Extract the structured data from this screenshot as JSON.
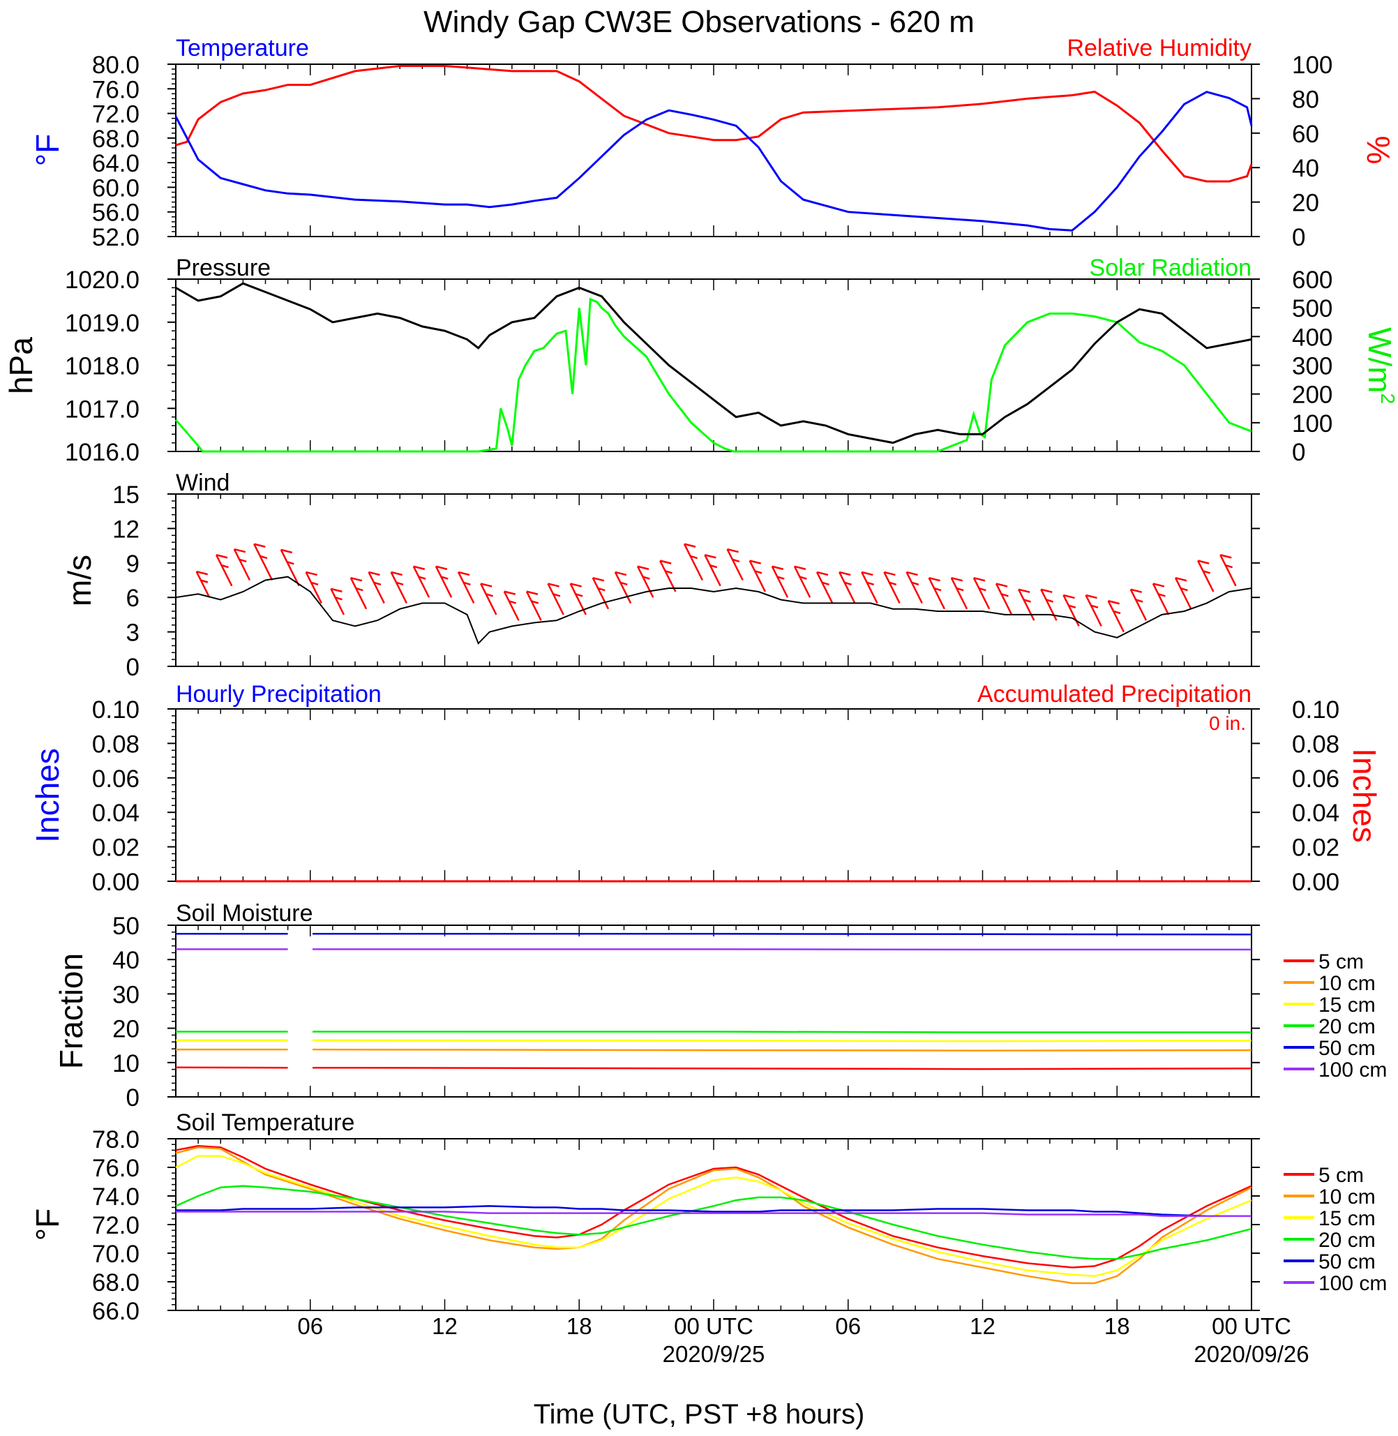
{
  "title": "Windy Gap CW3E Observations - 620 m",
  "x_axis": {
    "label": "Time (UTC, PST +8 hours)",
    "tick_labels": [
      "06",
      "12",
      "18",
      "00 UTC",
      "06",
      "12",
      "18",
      "00 UTC"
    ],
    "date_labels": [
      "2020/9/25",
      "2020/09/26"
    ]
  },
  "colors": {
    "temperature": "#0000ff",
    "humidity": "#ff0000",
    "pressure": "#000000",
    "solar": "#00ff00",
    "wind": "#000000",
    "barbs": "#ff0000",
    "hourly_precip": "#0000ff",
    "accum_precip": "#ff0000"
  },
  "soil_legend": [
    {
      "label": "5 cm",
      "color": "#ff0000"
    },
    {
      "label": "10 cm",
      "color": "#ff9900"
    },
    {
      "label": "15 cm",
      "color": "#ffff00"
    },
    {
      "label": "20 cm",
      "color": "#00ee00"
    },
    {
      "label": "50 cm",
      "color": "#0000dd"
    },
    {
      "label": "100 cm",
      "color": "#9933ff"
    }
  ],
  "chart_data": [
    {
      "type": "line",
      "panel": "temperature_humidity",
      "title_left": "Temperature",
      "title_right": "Relative Humidity",
      "ylabel_left": "°F",
      "ylabel_right": "%",
      "ylim_left": [
        52,
        80
      ],
      "ylim_right": [
        0,
        100
      ],
      "yticks_left": [
        "80.0",
        "76.0",
        "72.0",
        "68.0",
        "64.0",
        "60.0",
        "56.0",
        "52.0"
      ],
      "yticks_right": [
        "100",
        "80",
        "60",
        "40",
        "20",
        "0"
      ],
      "x_hours": [
        0,
        0.5,
        1,
        2,
        3,
        4,
        5,
        6,
        8,
        10,
        12,
        13,
        14,
        15,
        16,
        17,
        18,
        19,
        20,
        21,
        22,
        23,
        24,
        25,
        26,
        27,
        28,
        30,
        32,
        34,
        36,
        38,
        39,
        40,
        41,
        42,
        43,
        44,
        45,
        46,
        47,
        47.8,
        48
      ],
      "series": [
        {
          "name": "Temperature",
          "axis": "left",
          "values": [
            71.5,
            68,
            64.5,
            61.5,
            60.5,
            59.5,
            59,
            58.8,
            58,
            57.7,
            57.2,
            57.2,
            56.8,
            57.2,
            57.8,
            58.3,
            61.5,
            65,
            68.5,
            71,
            72.5,
            71.8,
            71,
            70,
            66.5,
            61,
            58,
            56,
            55.5,
            55,
            54.5,
            53.8,
            53.2,
            53,
            56,
            60,
            65,
            69,
            73.5,
            75.5,
            74.5,
            73,
            70
          ]
        },
        {
          "name": "Relative Humidity",
          "axis": "right",
          "values": [
            53,
            55,
            68,
            78,
            83,
            85,
            88,
            88,
            96,
            99,
            99,
            98,
            97,
            96,
            96,
            96,
            90,
            80,
            70,
            65,
            60,
            58,
            56,
            56,
            58,
            68,
            72,
            73,
            74,
            75,
            77,
            80,
            81,
            82,
            84,
            76,
            66,
            50,
            35,
            32,
            32,
            35,
            42
          ]
        }
      ]
    },
    {
      "type": "line",
      "panel": "pressure_solar",
      "title_left": "Pressure",
      "title_right": "Solar Radiation",
      "ylabel_left": "hPa",
      "ylabel_right": "W/m2",
      "ylim_left": [
        1016,
        1020
      ],
      "ylim_right": [
        0,
        600
      ],
      "yticks_left": [
        "1020.0",
        "1019.0",
        "1018.0",
        "1017.0",
        "1016.0"
      ],
      "yticks_right": [
        "600",
        "500",
        "400",
        "300",
        "200",
        "100",
        "0"
      ],
      "series": [
        {
          "name": "Pressure",
          "axis": "left",
          "x_hours": [
            0,
            1,
            2,
            3,
            4,
            5,
            6,
            7,
            8,
            9,
            10,
            11,
            12,
            13,
            13.5,
            14,
            15,
            16,
            17,
            18,
            19,
            20,
            21,
            22,
            23,
            24,
            25,
            26,
            27,
            28,
            29,
            30,
            31,
            32,
            33,
            34,
            35,
            36,
            37,
            38,
            39,
            40,
            41,
            42,
            43,
            44,
            45,
            46,
            47,
            48
          ],
          "values": [
            1019.8,
            1019.5,
            1019.6,
            1019.9,
            1019.7,
            1019.5,
            1019.3,
            1019.0,
            1019.1,
            1019.2,
            1019.1,
            1018.9,
            1018.8,
            1018.6,
            1018.4,
            1018.7,
            1019.0,
            1019.1,
            1019.6,
            1019.8,
            1019.6,
            1019.0,
            1018.5,
            1018.0,
            1017.6,
            1017.2,
            1016.8,
            1016.9,
            1016.6,
            1016.7,
            1016.6,
            1016.4,
            1016.3,
            1016.2,
            1016.4,
            1016.5,
            1016.4,
            1016.4,
            1016.8,
            1017.1,
            1017.5,
            1017.9,
            1018.5,
            1019.0,
            1019.3,
            1019.2,
            1018.8,
            1018.4,
            1018.5,
            1018.6
          ]
        },
        {
          "name": "Solar Radiation",
          "axis": "right",
          "x_hours": [
            0,
            1,
            1.2,
            12,
            13.5,
            14.3,
            14.5,
            14.8,
            15,
            15.3,
            15.6,
            16,
            16.4,
            17,
            17.4,
            17.7,
            18,
            18.3,
            18.5,
            18.8,
            19,
            19.3,
            19.6,
            20,
            21,
            22,
            23,
            24,
            24.5,
            24.9,
            25.1,
            34,
            35.3,
            35.6,
            35.9,
            36.1,
            36.4,
            37,
            38,
            39,
            40,
            41,
            42,
            43,
            44,
            45,
            46,
            47,
            48
          ],
          "values": [
            110,
            20,
            0,
            0,
            0,
            10,
            150,
            80,
            20,
            250,
            300,
            350,
            360,
            410,
            420,
            200,
            500,
            300,
            530,
            520,
            500,
            480,
            440,
            400,
            330,
            200,
            100,
            30,
            10,
            0,
            0,
            0,
            40,
            130,
            60,
            50,
            250,
            370,
            450,
            480,
            480,
            470,
            450,
            380,
            350,
            300,
            200,
            100,
            70
          ]
        }
      ]
    },
    {
      "type": "line",
      "panel": "wind",
      "title_left": "Wind",
      "ylabel_left": "m/s",
      "ylim_left": [
        0,
        15
      ],
      "yticks_left": [
        "15",
        "12",
        "9",
        "6",
        "3",
        "0"
      ],
      "x_hours": [
        0,
        1,
        2,
        3,
        4,
        5,
        6,
        7,
        8,
        9,
        10,
        11,
        12,
        13,
        13.5,
        14,
        15,
        16,
        17,
        18,
        19,
        20,
        21,
        22,
        23,
        24,
        25,
        26,
        27,
        28,
        29,
        30,
        31,
        32,
        33,
        34,
        35,
        36,
        37,
        38,
        39,
        40,
        41,
        42,
        43,
        44,
        45,
        46,
        47,
        48
      ],
      "series": [
        {
          "name": "Wind speed",
          "axis": "left",
          "values": [
            6,
            6.3,
            5.8,
            6.5,
            7.5,
            7.8,
            6.5,
            4,
            3.5,
            4,
            5,
            5.5,
            5.5,
            4.5,
            2,
            3,
            3.5,
            3.8,
            4,
            4.8,
            5.5,
            6,
            6.5,
            6.8,
            6.8,
            6.5,
            6.8,
            6.5,
            5.8,
            5.5,
            5.5,
            5.5,
            5.5,
            5,
            5,
            4.8,
            4.8,
            4.8,
            4.5,
            4.5,
            4.5,
            4.2,
            3,
            2.5,
            3.5,
            4.5,
            4.8,
            5.5,
            6.5,
            6.8
          ]
        }
      ],
      "barbs": {
        "x_hours": [
          1.5,
          2.5,
          3.3,
          4.3,
          5.5,
          6.5,
          7.5,
          8.5,
          9.3,
          10.3,
          11.3,
          12.3,
          13.3,
          14.3,
          15.3,
          16.3,
          17.3,
          18.3,
          19.3,
          20.3,
          21.3,
          22.3,
          23.5,
          24.3,
          25.3,
          26.3,
          27.3,
          28.3,
          29.3,
          30.3,
          31.3,
          32.3,
          33.3,
          34.3,
          35.3,
          36.3,
          37.3,
          38.3,
          39.3,
          40.3,
          41.3,
          42.3,
          43.3,
          44.3,
          45.3,
          46.3,
          47.3
        ],
        "speed": [
          6,
          7,
          7.5,
          7.5,
          7,
          5.5,
          4.5,
          5,
          5.5,
          5.5,
          6,
          6,
          5.5,
          4.5,
          4,
          4,
          4.5,
          4.5,
          5,
          5.5,
          6,
          6.5,
          7.5,
          7,
          7.5,
          6.5,
          6,
          6,
          5.5,
          5.5,
          5.5,
          5.5,
          5.5,
          5,
          5,
          5,
          4.5,
          4,
          4,
          3.5,
          3.5,
          3,
          4,
          4.5,
          5,
          6.5,
          7
        ],
        "length_ms": [
          2.5,
          3,
          3,
          3.5,
          3.5,
          3,
          2.5,
          3,
          3,
          3,
          3,
          3,
          3,
          3,
          2.8,
          2.8,
          3,
          3,
          3,
          3,
          3,
          3,
          3.5,
          3,
          3,
          3,
          3,
          3,
          3,
          3,
          3,
          3,
          3,
          3,
          3,
          3,
          3,
          3,
          3,
          3,
          3,
          3,
          3,
          3,
          3,
          3,
          3
        ]
      }
    },
    {
      "type": "line",
      "panel": "precipitation",
      "title_left": "Hourly Precipitation",
      "title_right": "Accumulated Precipitation",
      "annotation": "0 in.",
      "ylabel_left": "Inches",
      "ylabel_right": "Inches",
      "ylim_left": [
        0,
        0.1
      ],
      "ylim_right": [
        0,
        0.1
      ],
      "yticks_left": [
        "0.10",
        "0.08",
        "0.06",
        "0.04",
        "0.02",
        "0.00"
      ],
      "yticks_right": [
        "0.10",
        "0.08",
        "0.06",
        "0.04",
        "0.02",
        "0.00"
      ],
      "x_hours": [
        0,
        48
      ],
      "series": [
        {
          "name": "Hourly Precipitation",
          "axis": "left",
          "values": [
            0,
            0
          ]
        },
        {
          "name": "Accumulated Precipitation",
          "axis": "right",
          "values": [
            0,
            0
          ]
        }
      ]
    },
    {
      "type": "line",
      "panel": "soil_moisture",
      "title_left": "Soil Moisture",
      "ylabel_left": "Fraction",
      "ylim_left": [
        0,
        50
      ],
      "yticks_left": [
        "50",
        "40",
        "30",
        "20",
        "10",
        "0"
      ],
      "x_hours": [
        0,
        5,
        6.1,
        24,
        36,
        48
      ],
      "gap_hours": [
        5.0,
        6.0
      ],
      "series": [
        {
          "name": "5 cm",
          "values": [
            8.6,
            8.5,
            8.5,
            8.3,
            8.1,
            8.3
          ]
        },
        {
          "name": "10 cm",
          "values": [
            13.8,
            13.8,
            13.8,
            13.6,
            13.5,
            13.6
          ]
        },
        {
          "name": "15 cm",
          "values": [
            16.5,
            16.5,
            16.5,
            16.4,
            16.2,
            16.4
          ]
        },
        {
          "name": "20 cm",
          "values": [
            19.0,
            19.0,
            19.0,
            19.0,
            18.8,
            18.8
          ]
        },
        {
          "name": "50 cm",
          "values": [
            47.5,
            47.5,
            47.5,
            47.5,
            47.4,
            47.3
          ]
        },
        {
          "name": "100 cm",
          "values": [
            43.0,
            43.0,
            43.0,
            43.0,
            42.9,
            42.9
          ]
        }
      ]
    },
    {
      "type": "line",
      "panel": "soil_temperature",
      "title_left": "Soil Temperature",
      "ylabel_left": "°F",
      "ylim_left": [
        66,
        78
      ],
      "yticks_left": [
        "78.0",
        "76.0",
        "74.0",
        "72.0",
        "70.0",
        "68.0",
        "66.0"
      ],
      "x_hours": [
        0,
        1,
        2,
        3,
        4,
        6,
        8,
        10,
        12,
        14,
        16,
        17,
        18,
        19,
        20,
        22,
        24,
        25,
        26,
        27,
        28,
        30,
        32,
        34,
        36,
        38,
        40,
        41,
        42,
        43,
        44,
        46,
        48
      ],
      "series": [
        {
          "name": "5 cm",
          "values": [
            77.2,
            77.5,
            77.4,
            76.7,
            75.9,
            74.8,
            73.8,
            73.0,
            72.3,
            71.7,
            71.2,
            71.1,
            71.3,
            72.0,
            73.0,
            74.8,
            75.9,
            76.0,
            75.5,
            74.7,
            73.9,
            72.4,
            71.2,
            70.4,
            69.8,
            69.3,
            69.0,
            69.1,
            69.6,
            70.5,
            71.6,
            73.3,
            74.7
          ]
        },
        {
          "name": "10 cm",
          "values": [
            77.0,
            77.4,
            77.3,
            76.4,
            75.5,
            74.5,
            73.4,
            72.4,
            71.6,
            70.9,
            70.4,
            70.3,
            70.4,
            71.0,
            72.3,
            74.5,
            75.8,
            75.9,
            75.3,
            74.4,
            73.3,
            71.8,
            70.6,
            69.6,
            69.0,
            68.4,
            67.9,
            67.9,
            68.4,
            69.6,
            71.1,
            73.0,
            74.6
          ]
        },
        {
          "name": "15 cm",
          "values": [
            76.0,
            76.8,
            76.8,
            76.3,
            75.6,
            74.6,
            73.6,
            72.6,
            71.9,
            71.2,
            70.6,
            70.4,
            70.4,
            70.9,
            71.8,
            73.8,
            75.1,
            75.3,
            75.0,
            74.4,
            73.5,
            72.1,
            71.0,
            70.1,
            69.4,
            68.8,
            68.5,
            68.4,
            68.8,
            69.8,
            70.9,
            72.4,
            73.7
          ]
        },
        {
          "name": "20 cm",
          "values": [
            73.3,
            74.0,
            74.6,
            74.7,
            74.6,
            74.3,
            73.8,
            73.2,
            72.6,
            72.1,
            71.6,
            71.4,
            71.3,
            71.4,
            71.8,
            72.6,
            73.3,
            73.7,
            73.9,
            73.9,
            73.7,
            72.9,
            72.0,
            71.2,
            70.6,
            70.1,
            69.7,
            69.6,
            69.6,
            69.9,
            70.3,
            70.9,
            71.7
          ]
        },
        {
          "name": "50 cm",
          "values": [
            73.0,
            73.0,
            73.0,
            73.1,
            73.1,
            73.1,
            73.2,
            73.2,
            73.2,
            73.3,
            73.2,
            73.2,
            73.1,
            73.1,
            73.0,
            73.0,
            72.9,
            72.9,
            72.9,
            73.0,
            73.0,
            73.0,
            73.0,
            73.1,
            73.1,
            73.0,
            73.0,
            72.9,
            72.9,
            72.8,
            72.7,
            72.6,
            72.6
          ]
        },
        {
          "name": "100 cm",
          "values": [
            72.9,
            72.9,
            72.9,
            72.9,
            72.9,
            72.9,
            72.9,
            72.9,
            72.9,
            72.8,
            72.8,
            72.8,
            72.8,
            72.8,
            72.8,
            72.8,
            72.8,
            72.8,
            72.8,
            72.8,
            72.8,
            72.8,
            72.8,
            72.8,
            72.8,
            72.7,
            72.7,
            72.7,
            72.7,
            72.7,
            72.6,
            72.6,
            72.6
          ]
        }
      ]
    }
  ]
}
